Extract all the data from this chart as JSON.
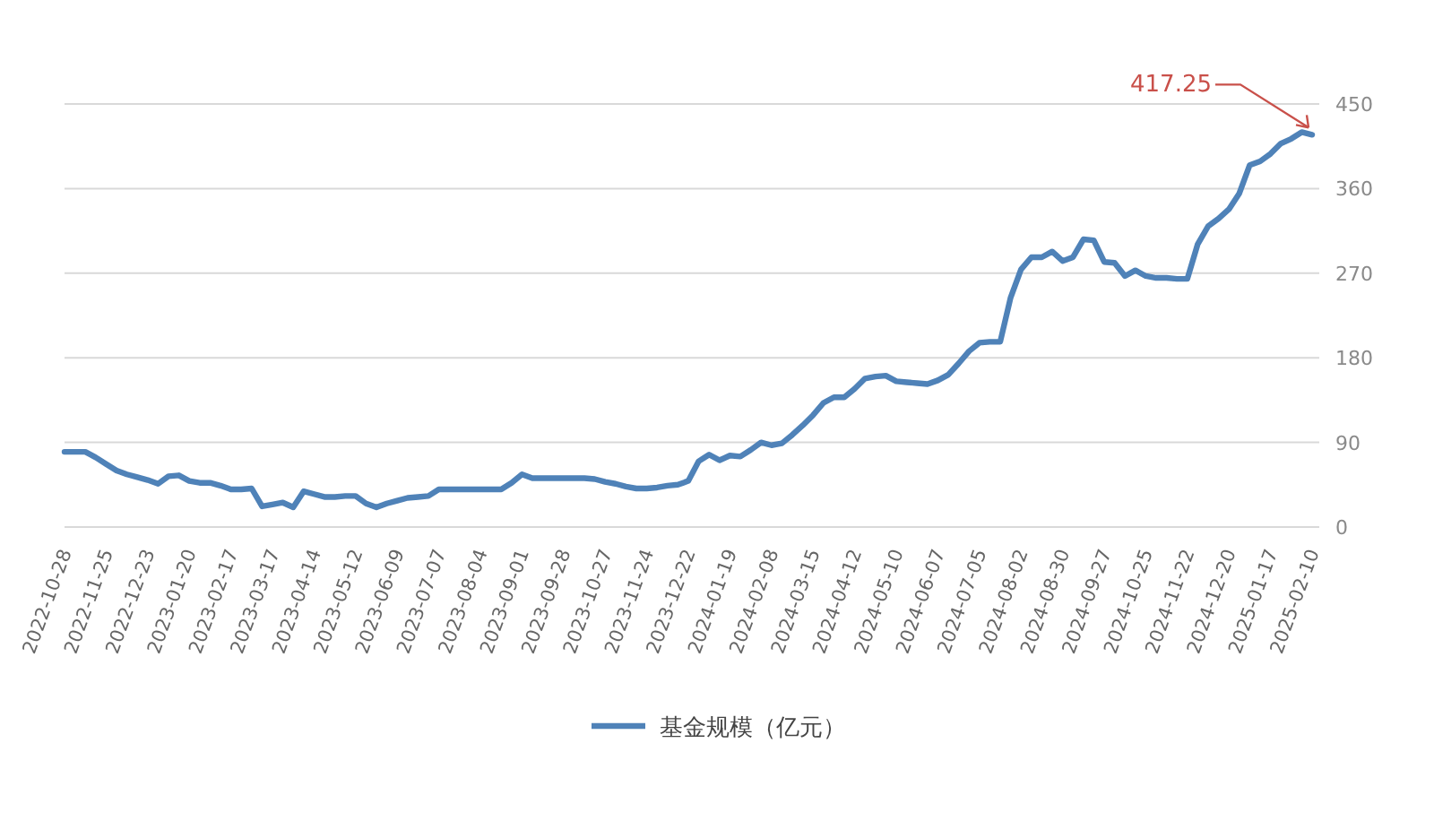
{
  "chart_data": {
    "type": "line",
    "categories": [
      "2022-10-28",
      null,
      null,
      null,
      "2022-11-25",
      null,
      null,
      null,
      "2022-12-23",
      null,
      null,
      null,
      "2023-01-20",
      null,
      null,
      null,
      "2023-02-17",
      null,
      null,
      null,
      "2023-03-17",
      null,
      null,
      null,
      "2023-04-14",
      null,
      null,
      null,
      "2023-05-12",
      null,
      null,
      null,
      "2023-06-09",
      null,
      null,
      null,
      "2023-07-07",
      null,
      null,
      null,
      "2023-08-04",
      null,
      null,
      null,
      "2023-09-01",
      null,
      null,
      null,
      "2023-09-28",
      null,
      null,
      null,
      "2023-10-27",
      null,
      null,
      null,
      "2023-11-24",
      null,
      null,
      null,
      "2023-12-22",
      null,
      null,
      null,
      "2024-01-19",
      null,
      null,
      null,
      "2024-02-08",
      null,
      null,
      null,
      "2024-03-15",
      null,
      null,
      null,
      "2024-04-12",
      null,
      null,
      null,
      "2024-05-10",
      null,
      null,
      null,
      "2024-06-07",
      null,
      null,
      null,
      "2024-07-05",
      null,
      null,
      null,
      "2024-08-02",
      null,
      null,
      null,
      "2024-08-30",
      null,
      null,
      null,
      "2024-09-27",
      null,
      null,
      null,
      "2024-10-25",
      null,
      null,
      null,
      "2024-11-22",
      null,
      null,
      null,
      "2024-12-20",
      null,
      null,
      null,
      "2025-01-17",
      null,
      null,
      null,
      "2025-02-10"
    ],
    "series": [
      {
        "name": "基金规模（亿元）",
        "color": "#4f82b8",
        "values": [
          80,
          80,
          80,
          74,
          67,
          60,
          56,
          53,
          50,
          46,
          54,
          55,
          49,
          47,
          47,
          44,
          40,
          40,
          41,
          22,
          24,
          26,
          21,
          38,
          35,
          32,
          32,
          33,
          33,
          25,
          21,
          25,
          28,
          31,
          32,
          33,
          40,
          40,
          40,
          40,
          40,
          40,
          40,
          47,
          56,
          52,
          52,
          52,
          52,
          52,
          52,
          51,
          48,
          46,
          43,
          41,
          41,
          42,
          44,
          45,
          49,
          70,
          77,
          71,
          76,
          75,
          82,
          90,
          87,
          89,
          98,
          108,
          119,
          132,
          138,
          138,
          147,
          158,
          160,
          161,
          155,
          154,
          153,
          152,
          156,
          162,
          174,
          187,
          196,
          197,
          197,
          244,
          274,
          287,
          287,
          293,
          283,
          287,
          306,
          305,
          282,
          281,
          267,
          273,
          267,
          265,
          265,
          264,
          264,
          301,
          320,
          328,
          338,
          355,
          385,
          389,
          397,
          408,
          413,
          420,
          417.25
        ]
      }
    ],
    "ylim": [
      0,
      450
    ],
    "yticks": [
      0,
      90,
      180,
      270,
      360,
      450
    ],
    "grid": "y",
    "legend": "bottom",
    "annotations": [
      {
        "text": "417.25",
        "x": "2025-02-10",
        "y": 417.25
      }
    ]
  }
}
